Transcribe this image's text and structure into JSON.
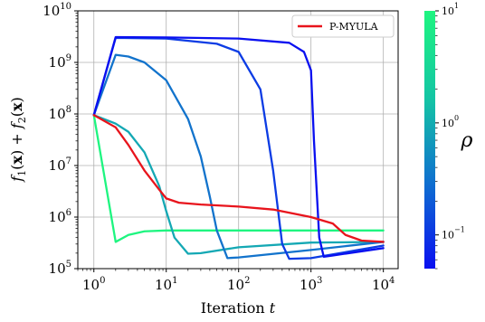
{
  "chart_data": {
    "type": "line",
    "title": "",
    "xlabel": "Iteration $t$",
    "xlabel_parts": {
      "word": "Iteration",
      "var": "t"
    },
    "ylabel": "$f_1(\\mathbf{x}) + f_2(\\mathbf{x})$",
    "x_scale": "log",
    "y_scale": "log",
    "xlim": [
      0.6,
      16000
    ],
    "ylim": [
      100000,
      10000000000
    ],
    "grid": true,
    "legend_position": "top-right",
    "x_ticks": [
      {
        "value": 1,
        "base": "10",
        "exp": "0"
      },
      {
        "value": 10,
        "base": "10",
        "exp": "1"
      },
      {
        "value": 100,
        "base": "10",
        "exp": "2"
      },
      {
        "value": 1000,
        "base": "10",
        "exp": "3"
      },
      {
        "value": 10000,
        "base": "10",
        "exp": "4"
      }
    ],
    "y_ticks": [
      {
        "value": 100000,
        "base": "10",
        "exp": "5"
      },
      {
        "value": 1000000,
        "base": "10",
        "exp": "6"
      },
      {
        "value": 10000000,
        "base": "10",
        "exp": "7"
      },
      {
        "value": 100000000,
        "base": "10",
        "exp": "8"
      },
      {
        "value": 1000000000,
        "base": "10",
        "exp": "9"
      },
      {
        "value": 10000000000,
        "base": "10",
        "exp": "10"
      }
    ],
    "colorbar": {
      "label": "ρ",
      "scale": "log",
      "range": [
        0.05,
        10
      ],
      "colors": [
        "#0a10f0",
        "#0f6fd0",
        "#14c5a4",
        "#1ef580"
      ],
      "ticks": [
        {
          "value": 0.1,
          "base": "10",
          "exp": "−1"
        },
        {
          "value": 1,
          "base": "10",
          "exp": "0"
        },
        {
          "value": 10,
          "base": "10",
          "exp": "1"
        }
      ]
    },
    "series": [
      {
        "name": "P-MYULA",
        "in_legend": true,
        "color": "#e8141c",
        "x": [
          1,
          2,
          3,
          5,
          8,
          10,
          15,
          30,
          100,
          300,
          1000,
          2000,
          3000,
          5000,
          10000
        ],
        "y": [
          95000000,
          55000000,
          25000000,
          8000000,
          3400000,
          2300000,
          1900000,
          1750000,
          1600000,
          1400000,
          1000000,
          750000,
          450000,
          350000,
          330000
        ]
      },
      {
        "color": "#1ef580",
        "x": [
          1,
          2,
          3,
          5,
          10,
          100,
          1000,
          10000
        ],
        "y": [
          95000000,
          330000,
          450000,
          530000,
          550000,
          550000,
          550000,
          550000
        ]
      },
      {
        "color": "#14a8b4",
        "x": [
          1,
          2,
          3,
          5,
          8,
          10,
          13,
          20,
          30,
          100,
          1000,
          10000
        ],
        "y": [
          95000000,
          65000000,
          45000000,
          18000000,
          4000000,
          1300000,
          400000,
          195000,
          200000,
          260000,
          320000,
          330000
        ]
      },
      {
        "color": "#1273cc",
        "x": [
          1,
          2,
          3,
          5,
          10,
          20,
          30,
          40,
          50,
          70,
          100,
          1000,
          10000
        ],
        "y": [
          95000000,
          1400000000,
          1300000000,
          1000000000,
          450000000,
          80000000,
          15000000,
          2500000,
          550000,
          160000,
          165000,
          230000,
          330000
        ]
      },
      {
        "color": "#0c3ce4",
        "x": [
          1,
          2,
          10,
          50,
          100,
          200,
          300,
          400,
          500,
          1000,
          10000
        ],
        "y": [
          95000000,
          3000000000,
          2900000000,
          2300000000,
          1600000000,
          300000000,
          8000000,
          300000,
          155000,
          160000,
          280000
        ]
      },
      {
        "color": "#0a10f0",
        "x": [
          1,
          2,
          10,
          100,
          500,
          800,
          1000,
          1100,
          1300,
          1500,
          2000,
          10000
        ],
        "y": [
          95000000,
          3100000000,
          3050000000,
          2900000000,
          2400000000,
          1600000000,
          700000000,
          30000000,
          400000,
          170000,
          180000,
          250000
        ]
      }
    ]
  }
}
